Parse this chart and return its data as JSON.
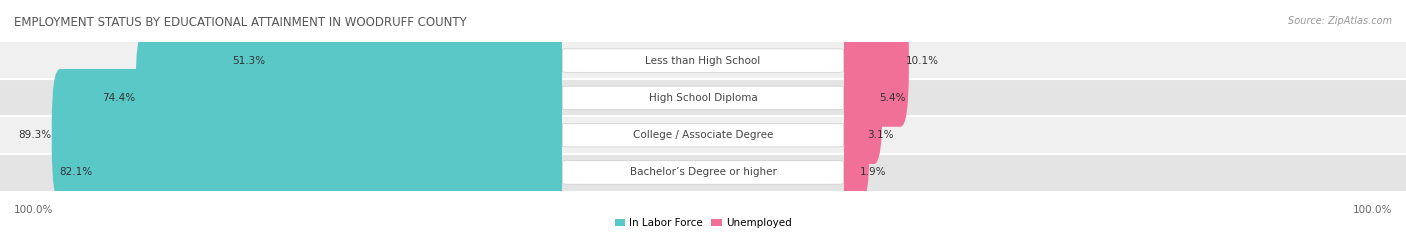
{
  "title": "EMPLOYMENT STATUS BY EDUCATIONAL ATTAINMENT IN WOODRUFF COUNTY",
  "source": "Source: ZipAtlas.com",
  "categories": [
    "Less than High School",
    "High School Diploma",
    "College / Associate Degree",
    "Bachelor’s Degree or higher"
  ],
  "labor_force": [
    51.3,
    74.4,
    89.3,
    82.1
  ],
  "unemployed": [
    10.1,
    5.4,
    3.1,
    1.9
  ],
  "labor_force_color": "#5bc8c8",
  "unemployed_color": "#f07098",
  "row_bg_colors": [
    "#f0f0f0",
    "#e4e4e4"
  ],
  "max_value": 100.0,
  "left_label": "100.0%",
  "right_label": "100.0%",
  "legend_labor": "In Labor Force",
  "legend_unemployed": "Unemployed",
  "title_fontsize": 8.5,
  "label_fontsize": 7.5,
  "bar_label_fontsize": 7.5,
  "category_fontsize": 7.5,
  "source_fontsize": 7
}
